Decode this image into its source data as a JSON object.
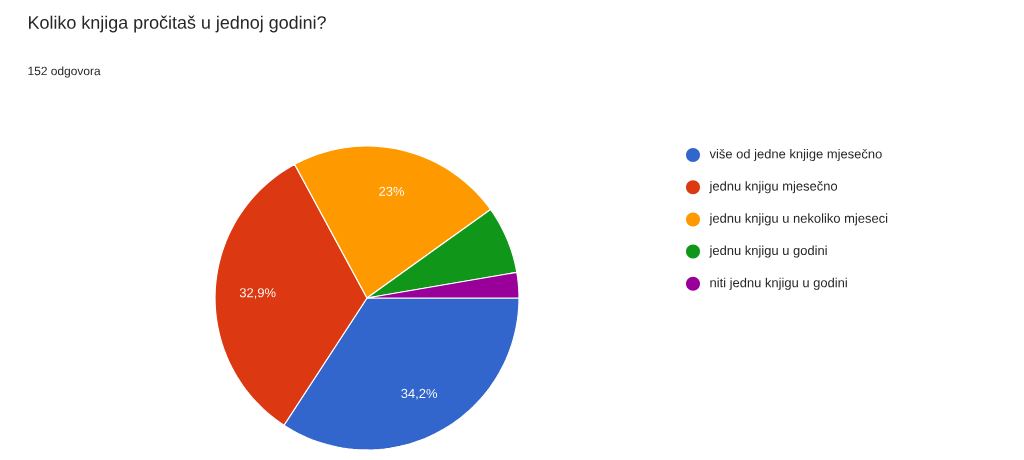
{
  "chart_data": {
    "type": "pie",
    "title": "Koliko knjiga pročitaš u jednoj godini?",
    "subtitle": "152 odgovora",
    "categories": [
      "više od jedne knjige mjesečno",
      "jednu knjigu mjesečno",
      "jednu knjigu u nekoliko mjeseci",
      "jednu knjigu u godini",
      "niti jednu knjigu u godini"
    ],
    "values": [
      34.2,
      32.9,
      23,
      7.2,
      2.7
    ],
    "value_labels": [
      "34,2%",
      "32,9%",
      "23%",
      null,
      null
    ],
    "colors": [
      "#3366cc",
      "#dc3912",
      "#ff9900",
      "#109618",
      "#990099"
    ],
    "legend": "right"
  }
}
